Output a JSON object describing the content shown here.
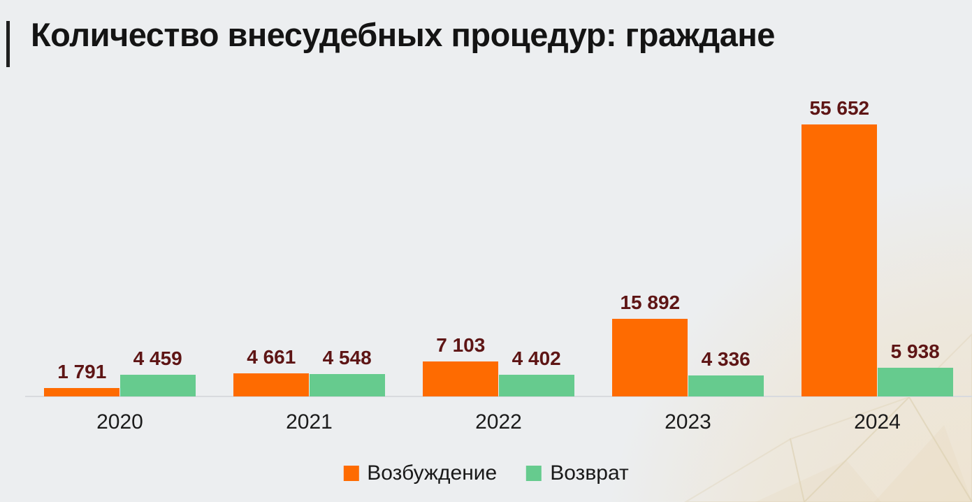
{
  "page": {
    "title": "Количество внесудебных процедур: граждане"
  },
  "colors": {
    "background": "#eceef0",
    "accent_bar": "#1f1f1f",
    "title_text": "#141414",
    "axis_line": "#d8dade",
    "value_label": "#5e1515",
    "year_label": "#1b1b1b",
    "series_initiation": "#fe6b01",
    "series_return": "#66cb8e",
    "watermark": "#eee2cc"
  },
  "chart_data": {
    "type": "bar",
    "title": "Количество внесудебных процедур: граждане",
    "categories": [
      "2020",
      "2021",
      "2022",
      "2023",
      "2024"
    ],
    "series": [
      {
        "name": "Возбуждение",
        "key": "vozbuzhdenie",
        "color": "#fe6b01",
        "values": [
          1791,
          4661,
          7103,
          15892,
          55652
        ],
        "labels": [
          "1 791",
          "4 661",
          "7 103",
          "15 892",
          "55 652"
        ]
      },
      {
        "name": "Возврат",
        "key": "vozvrat",
        "color": "#66cb8e",
        "values": [
          4459,
          4548,
          4402,
          4336,
          5938
        ],
        "labels": [
          "4 459",
          "4 548",
          "4 402",
          "4 336",
          "5 938"
        ]
      }
    ],
    "xlabel": "",
    "ylabel": "",
    "ylim": [
      0,
      64000
    ],
    "grid": false,
    "y_axis_visible": false,
    "value_labels_visible": true,
    "legend_position": "bottom"
  },
  "legend": {
    "items": [
      {
        "label": "Возбуждение",
        "color": "#fe6b01"
      },
      {
        "label": "Возврат",
        "color": "#66cb8e"
      }
    ]
  }
}
